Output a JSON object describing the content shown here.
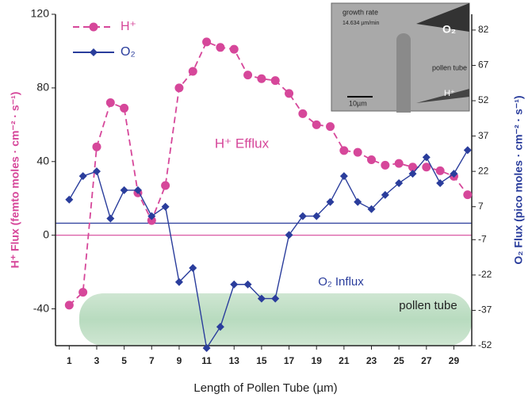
{
  "chart_data": {
    "type": "line",
    "x_label": "Length of Pollen Tube (µm)",
    "y_label": "H⁺ Flux (femto moles · cm⁻² · s⁻¹)",
    "y2_label": "O₂ Flux (pico moles · cm⁻² · s⁻¹)",
    "x": [
      1,
      2,
      3,
      4,
      5,
      6,
      7,
      8,
      9,
      10,
      11,
      12,
      13,
      14,
      15,
      16,
      17,
      18,
      19,
      20,
      21,
      22,
      23,
      24,
      25,
      26,
      27,
      28,
      29,
      30
    ],
    "xlim": [
      0,
      30.3
    ],
    "xticks": [
      1,
      3,
      5,
      7,
      9,
      11,
      13,
      15,
      17,
      19,
      21,
      23,
      25,
      27,
      29
    ],
    "ylim": [
      -60,
      120
    ],
    "yticks": [
      -40,
      0,
      40,
      80,
      120
    ],
    "y2lim": [
      -52,
      88.7
    ],
    "y2ticks": [
      82,
      67,
      52,
      37,
      22,
      7,
      -7,
      -22,
      -37,
      -52
    ],
    "legend": "upper left",
    "series": [
      {
        "name": "H⁺",
        "color": "#d6479a",
        "dashed": true,
        "marker": "circle",
        "values": [
          -38,
          -31,
          48,
          72,
          69,
          23,
          8,
          27,
          80,
          89,
          105,
          102,
          101,
          87,
          85,
          84,
          77,
          66,
          60,
          59,
          46,
          45,
          41,
          38,
          39,
          37,
          37,
          35,
          32,
          22
        ]
      },
      {
        "name": "O₂",
        "color": "#2a3d9c",
        "axis": "y2",
        "marker": "diamond",
        "values": [
          10,
          20,
          22,
          2,
          14,
          14,
          3,
          7,
          -25,
          -19,
          -53,
          -44,
          -26,
          -26,
          -32,
          -32,
          -5,
          3,
          3,
          9,
          20,
          9,
          6,
          12,
          17,
          21,
          28,
          17,
          21,
          31
        ]
      }
    ],
    "annotations": [
      {
        "text": "H⁺  Efflux",
        "color": "#d6479a"
      },
      {
        "text": "O₂ Influx",
        "color": "#2a3d9c"
      },
      {
        "text": "pollen tube",
        "color": "#222"
      }
    ],
    "inset": {
      "growth_label": "growth rate",
      "growth_value": "14.634 µm/min",
      "o2": "O₂",
      "tube": "pollen tube",
      "scale": "10µm",
      "h": "H⁺"
    }
  }
}
